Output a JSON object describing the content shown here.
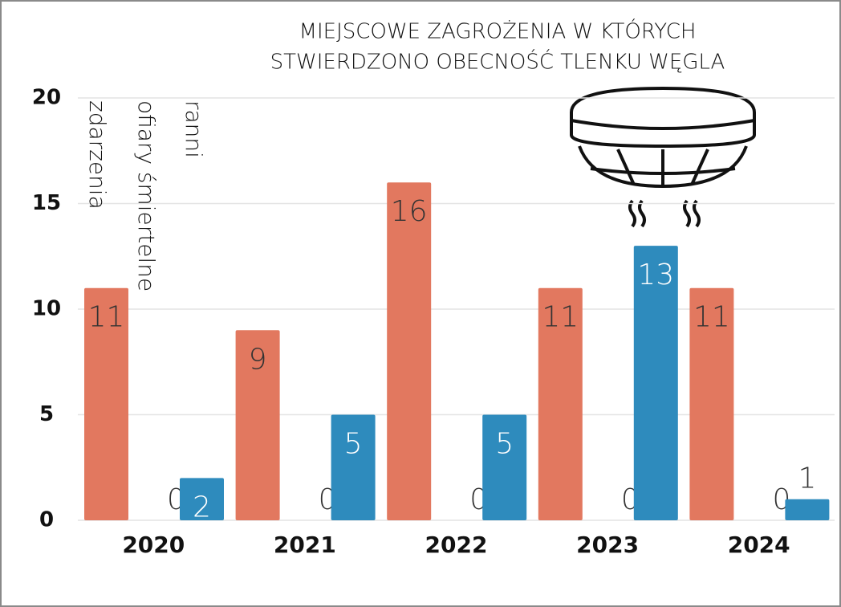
{
  "chart_data": {
    "type": "bar",
    "title": [
      "MIEJSCOWE ZAGROŻENIA W KTÓRYCH",
      "STWIERDZONO OBECNOŚĆ TLENKU WĘGLA"
    ],
    "categories": [
      "2020",
      "2021",
      "2022",
      "2023",
      "2024"
    ],
    "series": [
      {
        "name": "zdarzenia",
        "color": "#e2785f",
        "values": [
          11,
          9,
          16,
          11,
          11
        ]
      },
      {
        "name": "ofiary śmiertelne",
        "color": "#555555",
        "values": [
          0,
          0,
          0,
          0,
          0
        ]
      },
      {
        "name": "ranni",
        "color": "#2e8bbd",
        "values": [
          2,
          5,
          5,
          13,
          1
        ]
      }
    ],
    "ylim": [
      0,
      20
    ],
    "yticks": [
      0,
      5,
      10,
      15,
      20
    ],
    "grid": true
  }
}
